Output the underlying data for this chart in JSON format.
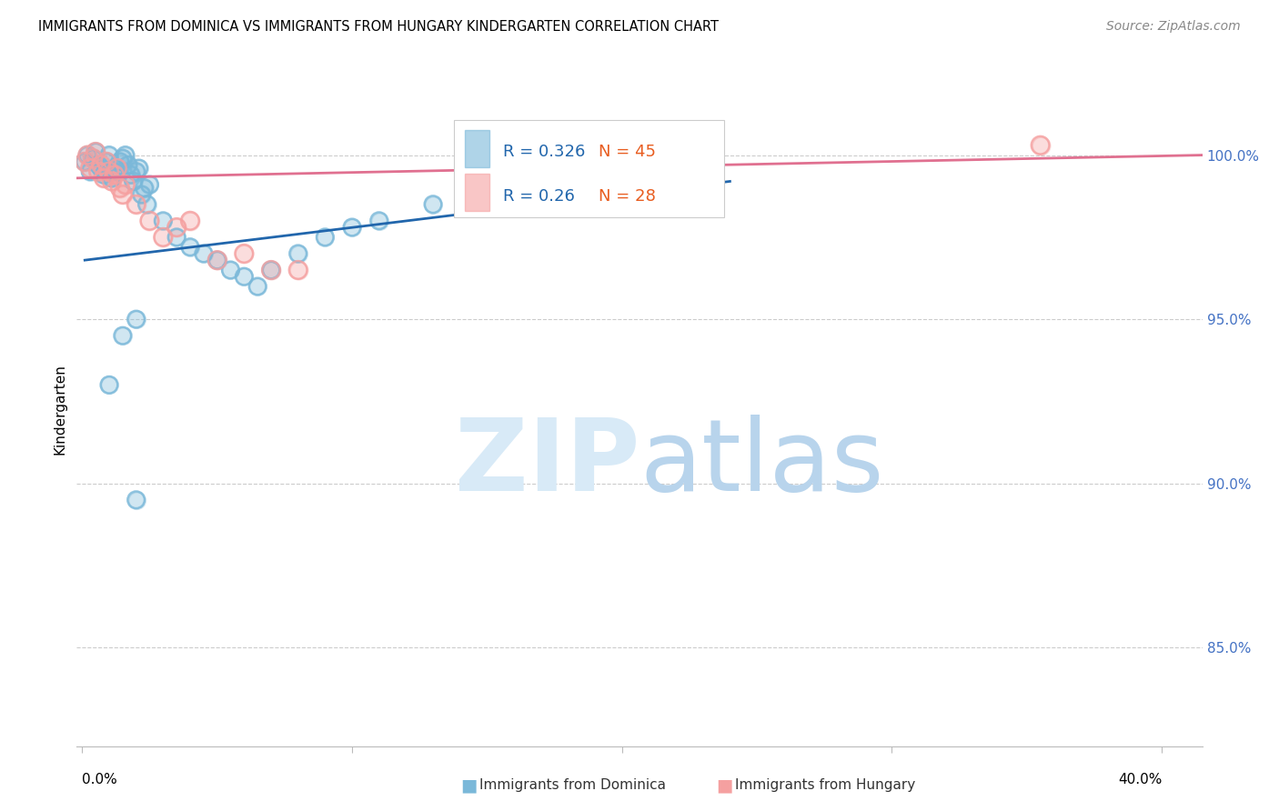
{
  "title": "IMMIGRANTS FROM DOMINICA VS IMMIGRANTS FROM HUNGARY KINDERGARTEN CORRELATION CHART",
  "source": "Source: ZipAtlas.com",
  "ylabel": "Kindergarten",
  "yticks": [
    85.0,
    90.0,
    95.0,
    100.0
  ],
  "ytick_labels": [
    "85.0%",
    "90.0%",
    "95.0%",
    "100.0%"
  ],
  "ymin": 82.0,
  "ymax": 102.5,
  "xmin": -0.002,
  "xmax": 0.415,
  "dominica_R": 0.326,
  "dominica_N": 45,
  "hungary_R": 0.26,
  "hungary_N": 28,
  "dominica_color": "#7ab8d9",
  "hungary_color": "#f5a0a0",
  "dominica_line_color": "#2166ac",
  "hungary_line_color": "#e07090",
  "background_color": "#ffffff",
  "dominica_x": [
    0.001,
    0.002,
    0.003,
    0.004,
    0.005,
    0.006,
    0.007,
    0.008,
    0.009,
    0.01,
    0.011,
    0.012,
    0.013,
    0.014,
    0.015,
    0.016,
    0.017,
    0.018,
    0.019,
    0.02,
    0.021,
    0.022,
    0.023,
    0.024,
    0.025,
    0.03,
    0.035,
    0.04,
    0.045,
    0.05,
    0.055,
    0.06,
    0.065,
    0.07,
    0.08,
    0.09,
    0.1,
    0.11,
    0.13,
    0.16,
    0.18,
    0.02,
    0.015,
    0.01,
    0.02
  ],
  "dominica_y": [
    99.8,
    100.0,
    99.5,
    99.9,
    100.1,
    99.7,
    99.6,
    99.4,
    99.8,
    100.0,
    99.3,
    99.6,
    99.5,
    99.8,
    99.9,
    100.0,
    99.7,
    99.4,
    99.2,
    99.5,
    99.6,
    98.8,
    99.0,
    98.5,
    99.1,
    98.0,
    97.5,
    97.2,
    97.0,
    96.8,
    96.5,
    96.3,
    96.0,
    96.5,
    97.0,
    97.5,
    97.8,
    98.0,
    98.5,
    99.0,
    99.2,
    95.0,
    94.5,
    93.0,
    89.5
  ],
  "hungary_x": [
    0.001,
    0.002,
    0.003,
    0.004,
    0.005,
    0.006,
    0.007,
    0.008,
    0.009,
    0.01,
    0.011,
    0.012,
    0.013,
    0.014,
    0.015,
    0.016,
    0.02,
    0.025,
    0.03,
    0.035,
    0.04,
    0.05,
    0.06,
    0.07,
    0.08,
    0.15,
    0.17,
    0.355
  ],
  "hungary_y": [
    99.8,
    100.0,
    99.6,
    99.9,
    100.1,
    99.5,
    99.7,
    99.3,
    99.8,
    99.5,
    99.2,
    99.4,
    99.6,
    99.0,
    98.8,
    99.1,
    98.5,
    98.0,
    97.5,
    97.8,
    98.0,
    96.8,
    97.0,
    96.5,
    96.5,
    99.5,
    99.0,
    100.3
  ],
  "dom_line_x0": 0.001,
  "dom_line_x1": 0.24,
  "dom_line_y0": 96.8,
  "dom_line_y1": 99.2,
  "hun_line_x0": -0.002,
  "hun_line_x1": 0.415,
  "hun_line_y0": 99.3,
  "hun_line_y1": 100.0
}
